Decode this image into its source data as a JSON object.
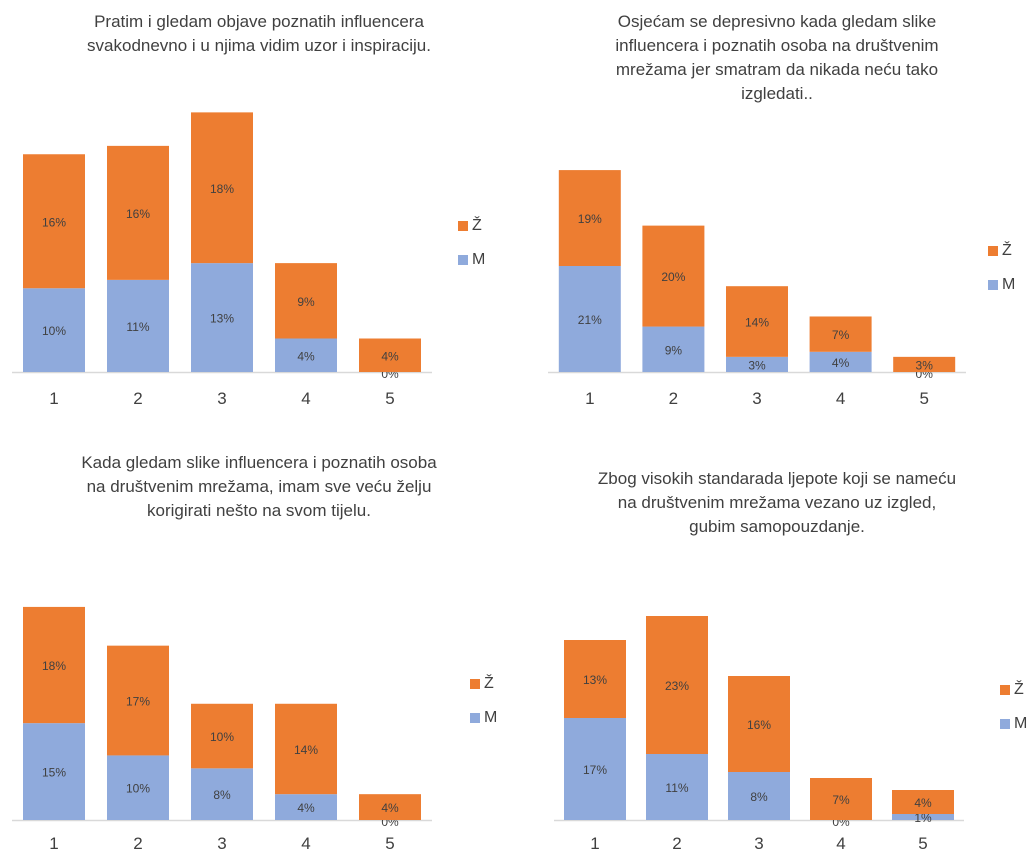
{
  "colors": {
    "Z": "#ED7D31",
    "M": "#8FAADC",
    "axis": "#d9d9d9",
    "text": "#404040"
  },
  "chart_data": [
    {
      "type": "bar",
      "stacked": true,
      "title": "Pratim i gledam objave poznatih influencera\nsvakodnevno i u njima vidim uzor i inspiraciju.",
      "categories": [
        "1",
        "2",
        "3",
        "4",
        "5"
      ],
      "series": [
        {
          "name": "M",
          "values": [
            10,
            11,
            13,
            4,
            0
          ],
          "labels": [
            "10%",
            "11%",
            "13%",
            "4%",
            "0%"
          ]
        },
        {
          "name": "Ž",
          "values": [
            16,
            16,
            18,
            9,
            4
          ],
          "labels": [
            "16%",
            "16%",
            "18%",
            "9%",
            "4%"
          ]
        }
      ],
      "legend": [
        "Ž",
        "M"
      ],
      "legend_position": "right",
      "ylim": [
        0,
        32
      ],
      "grid": false
    },
    {
      "type": "bar",
      "stacked": true,
      "title": "Osjećam se depresivno kada gledam slike\ninfluencera i poznatih osoba na društvenim\nmrežama jer smatram da nikada neću tako\nizgledati..",
      "categories": [
        "1",
        "2",
        "3",
        "4",
        "5"
      ],
      "series": [
        {
          "name": "M",
          "values": [
            21,
            9,
            3,
            4,
            0
          ],
          "labels": [
            "21%",
            "9%",
            "3%",
            "4%",
            "0%"
          ]
        },
        {
          "name": "Ž",
          "values": [
            19,
            20,
            14,
            7,
            3
          ],
          "labels": [
            "19%",
            "20%",
            "14%",
            "7%",
            "3%"
          ]
        }
      ],
      "legend": [
        "Ž",
        "M"
      ],
      "legend_position": "right",
      "ylim": [
        0,
        42
      ],
      "grid": false
    },
    {
      "type": "bar",
      "stacked": true,
      "title": "Kada gledam slike influencera i poznatih osoba\nna društvenim mrežama, imam sve veću želju\nkorigirati nešto na svom tijelu.",
      "categories": [
        "1",
        "2",
        "3",
        "4",
        "5"
      ],
      "series": [
        {
          "name": "M",
          "values": [
            15,
            10,
            8,
            4,
            0
          ],
          "labels": [
            "15%",
            "10%",
            "8%",
            "4%",
            "0%"
          ]
        },
        {
          "name": "Ž",
          "values": [
            18,
            17,
            10,
            14,
            4
          ],
          "labels": [
            "18%",
            "17%",
            "10%",
            "14%",
            "4%"
          ]
        }
      ],
      "legend": [
        "Ž",
        "M"
      ],
      "legend_position": "right",
      "ylim": [
        0,
        35
      ],
      "grid": false
    },
    {
      "type": "bar",
      "stacked": true,
      "title": "Zbog visokih standarada ljepote koji se nameću\nna društvenim mrežama vezano uz izgled,\ngubim samopouzdanje.",
      "categories": [
        "1",
        "2",
        "3",
        "4",
        "5"
      ],
      "series": [
        {
          "name": "M",
          "values": [
            17,
            11,
            8,
            0,
            1
          ],
          "labels": [
            "17%",
            "11%",
            "8%",
            "0%",
            "1%"
          ]
        },
        {
          "name": "Ž",
          "values": [
            13,
            23,
            16,
            7,
            4
          ],
          "labels": [
            "13%",
            "23%",
            "16%",
            "7%",
            "4%"
          ]
        }
      ],
      "legend": [
        "Ž",
        "M"
      ],
      "legend_position": "right",
      "ylim": [
        0,
        36
      ],
      "grid": false
    }
  ]
}
